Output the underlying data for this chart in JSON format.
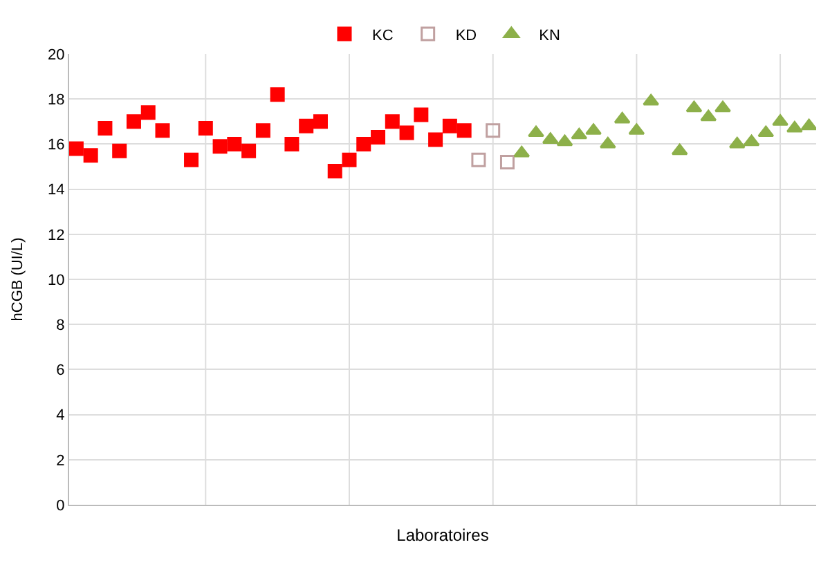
{
  "chart_data": {
    "type": "scatter",
    "xlabel": "Laboratoires",
    "ylabel": "hCGB (UI/L)",
    "categories": [
      null,
      null,
      null,
      null,
      null,
      null,
      null,
      null,
      null,
      null,
      null,
      null,
      null,
      null,
      null,
      null,
      null,
      null,
      null,
      null,
      null,
      null,
      null,
      null,
      null,
      null,
      null,
      null,
      null,
      null,
      null,
      null,
      null,
      null,
      null,
      null,
      null,
      null,
      null,
      null,
      null,
      null,
      null,
      null,
      null,
      null,
      null,
      null,
      null,
      null,
      null,
      null
    ],
    "ylim": [
      0,
      20
    ],
    "yticks": [
      0,
      2,
      4,
      6,
      8,
      10,
      12,
      14,
      16,
      18,
      20
    ],
    "grid": true,
    "legend": "top",
    "series": [
      {
        "name": "KC",
        "color": "#ff0000",
        "marker": "square",
        "values": [
          15.8,
          15.5,
          16.7,
          15.7,
          17.0,
          17.4,
          16.6,
          null,
          15.3,
          16.7,
          15.9,
          16.0,
          15.7,
          16.6,
          18.2,
          16.0,
          16.8,
          17.0,
          14.8,
          15.3,
          16.0,
          16.3,
          17.0,
          16.5,
          17.3,
          16.2,
          16.8,
          16.6,
          null,
          null,
          null,
          null,
          null,
          null,
          null,
          null,
          null,
          null,
          null,
          null,
          null,
          null,
          null,
          null,
          null,
          null,
          null,
          null,
          null,
          null,
          null,
          null
        ]
      },
      {
        "name": "KD",
        "color": "#c0a0a0",
        "marker": "square-open",
        "values": [
          null,
          null,
          null,
          null,
          null,
          null,
          null,
          null,
          null,
          null,
          null,
          null,
          null,
          null,
          null,
          null,
          null,
          null,
          null,
          null,
          null,
          null,
          null,
          null,
          null,
          null,
          null,
          null,
          15.3,
          16.6,
          15.2,
          null,
          null,
          null,
          null,
          null,
          null,
          null,
          null,
          null,
          null,
          null,
          null,
          null,
          null,
          null,
          null,
          null,
          null,
          null,
          null,
          null
        ]
      },
      {
        "name": "KN",
        "color": "#8db04a",
        "marker": "triangle",
        "values": [
          null,
          null,
          null,
          null,
          null,
          null,
          null,
          null,
          null,
          null,
          null,
          null,
          null,
          null,
          null,
          null,
          null,
          null,
          null,
          null,
          null,
          null,
          null,
          null,
          null,
          null,
          null,
          null,
          null,
          null,
          null,
          15.6,
          16.5,
          16.2,
          16.1,
          16.4,
          16.6,
          16.0,
          17.1,
          16.6,
          17.9,
          null,
          15.7,
          17.6,
          17.2,
          17.6,
          16.0,
          16.1,
          16.5,
          17.0,
          16.7,
          16.8
        ]
      }
    ]
  }
}
